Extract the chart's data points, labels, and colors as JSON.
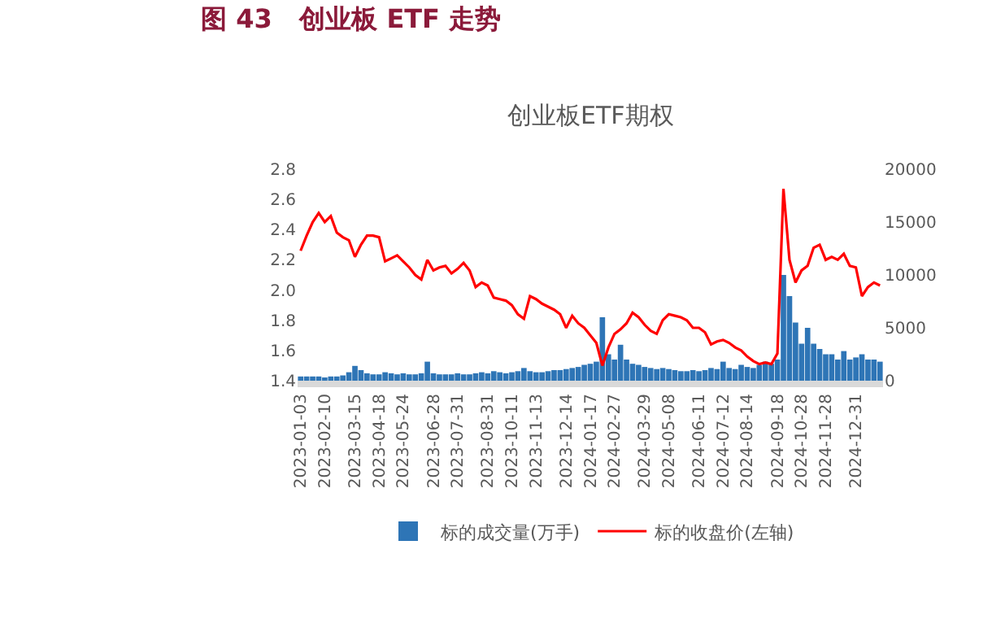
{
  "chart_data": {
    "type": "bar",
    "title": "图 43   创业板 ETF 走势",
    "subtitle": "创业板ETF期权",
    "categories": [
      "2023-01-03",
      null,
      null,
      null,
      "2023-02-10",
      null,
      null,
      null,
      null,
      "2023-03-15",
      null,
      null,
      null,
      "2023-04-18",
      null,
      null,
      null,
      "2023-05-24",
      null,
      null,
      null,
      null,
      "2023-06-28",
      null,
      null,
      null,
      "2023-07-31",
      null,
      null,
      null,
      null,
      "2023-08-31",
      null,
      null,
      null,
      "2023-10-11",
      null,
      null,
      null,
      "2023-11-13",
      null,
      null,
      null,
      null,
      "2023-12-14",
      null,
      null,
      null,
      "2024-01-17",
      null,
      null,
      null,
      "2024-02-27",
      null,
      null,
      null,
      null,
      "2024-03-29",
      null,
      null,
      null,
      "2024-05-08",
      null,
      null,
      null,
      null,
      "2024-06-11",
      null,
      null,
      null,
      "2024-07-12",
      null,
      null,
      null,
      "2024-08-14",
      null,
      null,
      null,
      null,
      "2024-09-18",
      null,
      null,
      null,
      "2024-10-28",
      null,
      null,
      null,
      "2024-11-28",
      null,
      null,
      null,
      null,
      "2024-12-31",
      null,
      null,
      null,
      null
    ],
    "series": [
      {
        "name": "标的成交量(万手)",
        "axis": "y2",
        "color": "#2e75b6",
        "values": [
          400,
          400,
          400,
          400,
          300,
          400,
          400,
          500,
          800,
          1400,
          1000,
          700,
          600,
          600,
          800,
          700,
          600,
          700,
          600,
          600,
          700,
          1800,
          700,
          600,
          600,
          600,
          700,
          600,
          600,
          700,
          800,
          700,
          900,
          800,
          700,
          800,
          900,
          1200,
          900,
          800,
          800,
          900,
          1000,
          1000,
          1100,
          1200,
          1300,
          1500,
          1600,
          1800,
          6000,
          2500,
          2000,
          3400,
          2000,
          1600,
          1500,
          1300,
          1200,
          1100,
          1200,
          1100,
          1000,
          900,
          900,
          1000,
          900,
          1000,
          1200,
          1100,
          1800,
          1200,
          1100,
          1500,
          1300,
          1200,
          1500,
          1800,
          1600,
          2000,
          10000,
          8000,
          5500,
          3500,
          5000,
          3500,
          3000,
          2500,
          2500,
          2000,
          2800,
          2000,
          2200,
          2500,
          2000,
          2000,
          1800
        ]
      },
      {
        "name": "标的收盘价(左轴)",
        "type": "line",
        "axis": "y",
        "color": "#ff0000",
        "values": [
          2.26,
          2.36,
          2.45,
          2.51,
          2.45,
          2.49,
          2.38,
          2.35,
          2.33,
          2.22,
          2.3,
          2.36,
          2.36,
          2.35,
          2.19,
          2.21,
          2.23,
          2.19,
          2.15,
          2.1,
          2.07,
          2.2,
          2.13,
          2.15,
          2.16,
          2.11,
          2.14,
          2.18,
          2.13,
          2.02,
          2.05,
          2.03,
          1.95,
          1.94,
          1.93,
          1.9,
          1.84,
          1.81,
          1.96,
          1.94,
          1.91,
          1.89,
          1.87,
          1.84,
          1.75,
          1.83,
          1.78,
          1.75,
          1.7,
          1.65,
          1.5,
          1.62,
          1.71,
          1.74,
          1.78,
          1.85,
          1.82,
          1.77,
          1.73,
          1.71,
          1.8,
          1.84,
          1.83,
          1.82,
          1.8,
          1.75,
          1.75,
          1.72,
          1.64,
          1.66,
          1.67,
          1.65,
          1.62,
          1.6,
          1.56,
          1.53,
          1.51,
          1.52,
          1.51,
          1.58,
          2.67,
          2.2,
          2.05,
          2.13,
          2.16,
          2.28,
          2.3,
          2.2,
          2.22,
          2.2,
          2.24,
          2.16,
          2.15,
          1.96,
          2.02,
          2.05,
          2.03
        ]
      }
    ],
    "ylim": [
      1.4,
      2.8
    ],
    "yticks": [
      {
        "value": 1.4,
        "label": "1.4"
      },
      {
        "value": 1.6,
        "label": "1.6"
      },
      {
        "value": 1.8,
        "label": "1.8"
      },
      {
        "value": 2.0,
        "label": "2.0"
      },
      {
        "value": 2.2,
        "label": "2.2"
      },
      {
        "value": 2.4,
        "label": "2.4"
      },
      {
        "value": 2.6,
        "label": "2.6"
      },
      {
        "value": 2.8,
        "label": "2.8"
      }
    ],
    "y2lim": [
      0,
      20000
    ],
    "y2ticks": [
      0,
      5000,
      10000,
      15000,
      20000
    ],
    "legend": "bottom"
  }
}
